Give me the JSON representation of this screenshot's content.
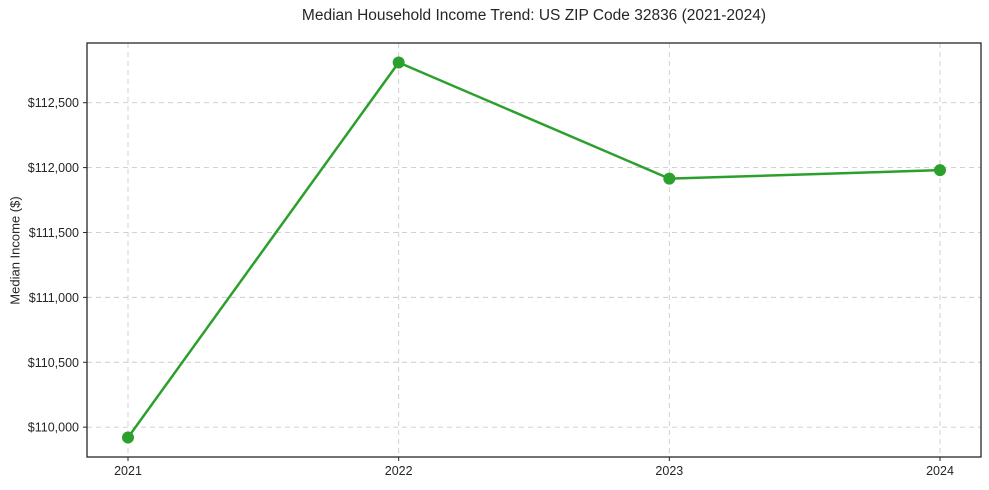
{
  "chart_data": {
    "type": "line",
    "title": "Median Household Income Trend: US ZIP Code 32836 (2021-2024)",
    "xlabel": "",
    "ylabel": "Median Income ($)",
    "categories": [
      "2021",
      "2022",
      "2023",
      "2024"
    ],
    "series": [
      {
        "values": [
          109920,
          112810,
          111915,
          111980
        ]
      }
    ],
    "ylim": [
      109770,
      112960
    ],
    "yticks": [
      {
        "value": 110000,
        "label": "$110,000"
      },
      {
        "value": 110500,
        "label": "$110,500"
      },
      {
        "value": 111000,
        "label": "$111,000"
      },
      {
        "value": 111500,
        "label": "$111,500"
      },
      {
        "value": 112000,
        "label": "$112,000"
      },
      {
        "value": 112500,
        "label": "$112,500"
      }
    ],
    "grid": {
      "show": true,
      "style": "dashed",
      "axes": "both"
    },
    "legend": {
      "show": false
    },
    "colors": {
      "line": "#2ca02c",
      "marker": "#2ca02c",
      "spine": "#262626",
      "grid": "#cccccc",
      "tick_label": "#262626",
      "background": "#ffffff"
    }
  }
}
